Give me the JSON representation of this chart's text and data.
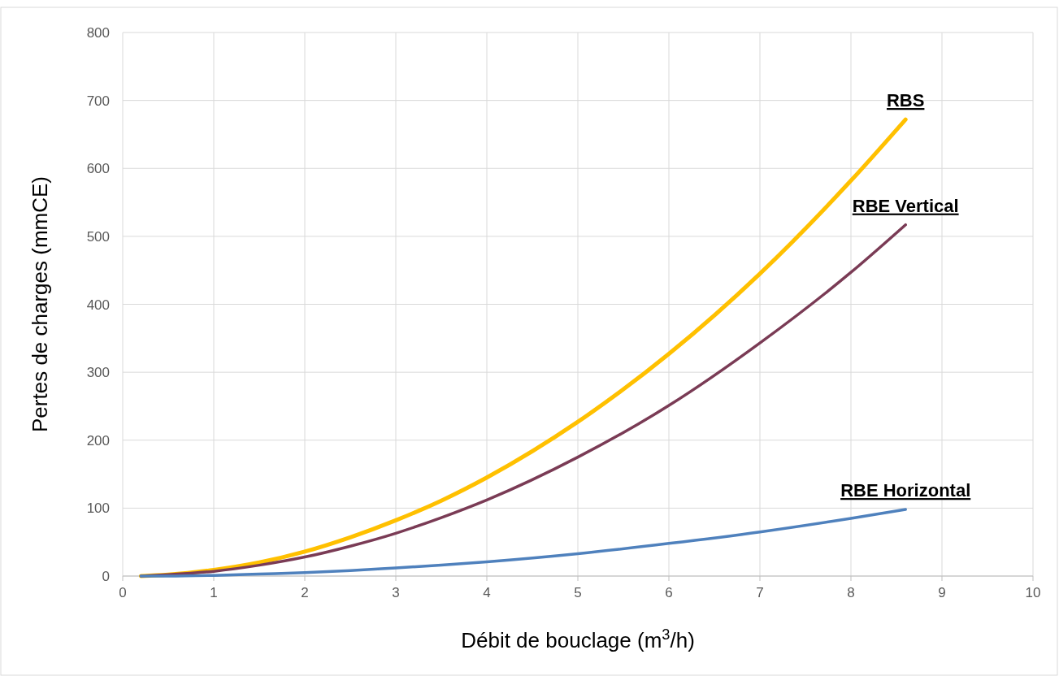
{
  "chart_data": {
    "type": "line",
    "xlabel": "Débit de bouclage (m$^{3}$/h)",
    "ylabel": "Pertes de charges (mmCE)",
    "x": [
      0.2,
      0.5,
      1,
      1.5,
      2,
      2.5,
      3,
      3.5,
      4,
      5,
      6,
      7,
      8,
      8.6
    ],
    "series": [
      {
        "name": "RBS",
        "color": "#ffc000",
        "values": [
          0,
          2,
          9,
          20,
          36,
          57,
          82,
          111,
          145,
          227,
          327,
          445,
          582,
          672
        ]
      },
      {
        "name": "RBE Vertical",
        "color": "#7a3b55",
        "values": [
          0,
          2,
          7,
          16,
          28,
          44,
          63,
          86,
          112,
          175,
          251,
          343,
          447,
          517
        ]
      },
      {
        "name": "RBE Horizontal",
        "color": "#4f81bd",
        "values": [
          0,
          0,
          1,
          3,
          5,
          8,
          12,
          16,
          21,
          33,
          48,
          65,
          85,
          98
        ]
      }
    ],
    "xlim": [
      0,
      10
    ],
    "xticks": [
      0,
      1,
      2,
      3,
      4,
      5,
      6,
      7,
      8,
      9,
      10
    ],
    "ylim": [
      0,
      800
    ],
    "yticks": [
      0,
      100,
      200,
      300,
      400,
      500,
      600,
      700,
      800
    ],
    "grid": true,
    "marker": "none",
    "line_style": "solid"
  }
}
